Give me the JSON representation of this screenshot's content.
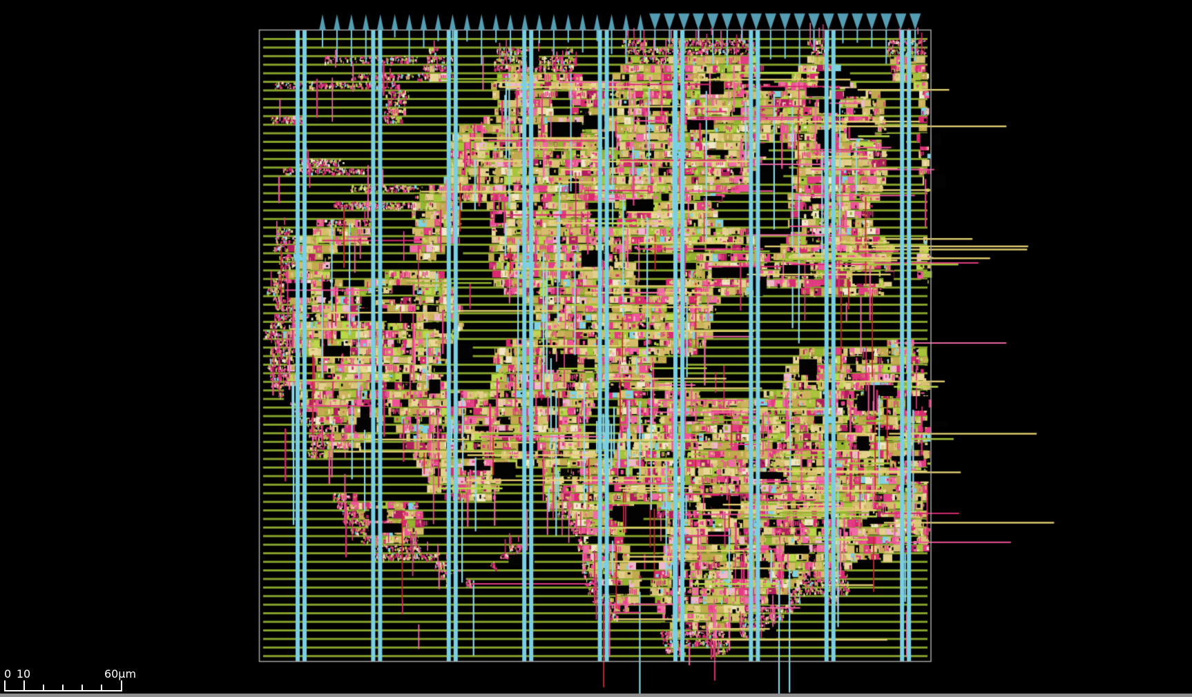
{
  "viewer": {
    "background_color": "#000000",
    "die_border_color": "#a9a9a9"
  },
  "layers": {
    "row_rail_color": "#87a42c",
    "row_count": 73,
    "power_stripe_color": "#7bcfe2",
    "power_stripe_pair_count": 9,
    "pin_color": "#559db2",
    "pin_stem_color": "#7bcfe2",
    "cell_khaki_color": "#d9c377",
    "wire_pink_color": "#e23c83",
    "wire_red_color": "#c8272e",
    "wire_green_color": "#a6c63a",
    "via_cyan_color": "#8ed8e8",
    "speck_white_color": "#efe7c8"
  },
  "pins": {
    "total": 42,
    "up_count": 23,
    "down_count": 19
  },
  "scalebar": {
    "label_0": "0",
    "label_10": "10",
    "label_end": "60μm",
    "tick_color": "#ffffff"
  },
  "statusbar": {
    "strip_color": "#8e8e8e"
  }
}
